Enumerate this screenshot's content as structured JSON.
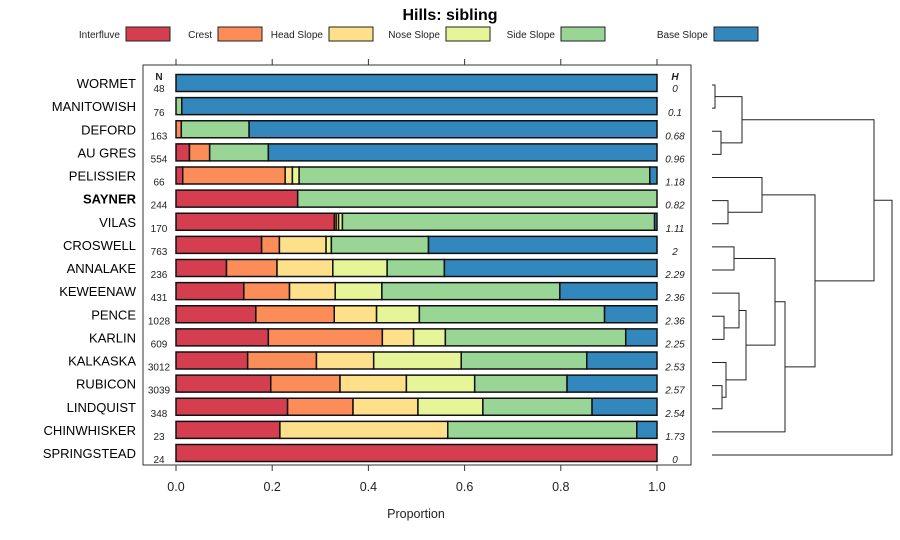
{
  "chart_data": {
    "type": "bar",
    "orientation": "horizontal-stacked",
    "title": "Hills: sibling",
    "xlabel": "Proportion",
    "xlim": [
      0,
      1
    ],
    "xticks": [
      "0.0",
      "0.2",
      "0.4",
      "0.6",
      "0.8",
      "1.0"
    ],
    "n_header": "N",
    "h_header": "H",
    "legend_position": "top",
    "series": [
      {
        "name": "Interfluve",
        "color": "#d53e4f"
      },
      {
        "name": "Crest",
        "color": "#fc8d59"
      },
      {
        "name": "Head Slope",
        "color": "#fee08b"
      },
      {
        "name": "Nose Slope",
        "color": "#e6f598"
      },
      {
        "name": "Side Slope",
        "color": "#99d594"
      },
      {
        "name": "Base Slope",
        "color": "#3288bd"
      }
    ],
    "rows": [
      {
        "label": "WORMET",
        "bold": false,
        "n": "48",
        "h": "0",
        "values": [
          0,
          0,
          0,
          0,
          0,
          1.0
        ]
      },
      {
        "label": "MANITOWISH",
        "bold": false,
        "n": "76",
        "h": "0.1",
        "values": [
          0,
          0,
          0,
          0,
          0.012,
          0.988
        ]
      },
      {
        "label": "DEFORD",
        "bold": false,
        "n": "163",
        "h": "0.68",
        "values": [
          0,
          0.011,
          0,
          0,
          0.141,
          0.848
        ]
      },
      {
        "label": "AU GRES",
        "bold": false,
        "n": "554",
        "h": "0.96",
        "values": [
          0.028,
          0.042,
          0,
          0,
          0.122,
          0.808
        ]
      },
      {
        "label": "PELISSIER",
        "bold": false,
        "n": "66",
        "h": "1.18",
        "values": [
          0.014,
          0.213,
          0.015,
          0.014,
          0.729,
          0.015
        ]
      },
      {
        "label": "SAYNER",
        "bold": true,
        "n": "244",
        "h": "0.82",
        "values": [
          0.253,
          0,
          0,
          0,
          0.747,
          0
        ]
      },
      {
        "label": "VILAS",
        "bold": false,
        "n": "170",
        "h": "1.11",
        "values": [
          0.329,
          0.004,
          0.005,
          0.008,
          0.649,
          0.005
        ]
      },
      {
        "label": "CROSWELL",
        "bold": false,
        "n": "763",
        "h": "2",
        "values": [
          0.178,
          0.037,
          0.097,
          0.011,
          0.202,
          0.475
        ]
      },
      {
        "label": "ANNALAKE",
        "bold": false,
        "n": "236",
        "h": "2.29",
        "values": [
          0.105,
          0.105,
          0.116,
          0.113,
          0.119,
          0.442
        ]
      },
      {
        "label": "KEWEENAW",
        "bold": false,
        "n": "431",
        "h": "2.36",
        "values": [
          0.141,
          0.095,
          0.095,
          0.097,
          0.37,
          0.202
        ]
      },
      {
        "label": "PENCE",
        "bold": false,
        "n": "1028",
        "h": "2.36",
        "values": [
          0.166,
          0.163,
          0.088,
          0.089,
          0.385,
          0.109
        ]
      },
      {
        "label": "KARLIN",
        "bold": false,
        "n": "609",
        "h": "2.25",
        "values": [
          0.192,
          0.237,
          0.065,
          0.066,
          0.375,
          0.065
        ]
      },
      {
        "label": "KALKASKA",
        "bold": false,
        "n": "3012",
        "h": "2.53",
        "values": [
          0.149,
          0.143,
          0.119,
          0.182,
          0.261,
          0.146
        ]
      },
      {
        "label": "RUBICON",
        "bold": false,
        "n": "3039",
        "h": "2.57",
        "values": [
          0.197,
          0.144,
          0.138,
          0.142,
          0.192,
          0.187
        ]
      },
      {
        "label": "LINDQUIST",
        "bold": false,
        "n": "348",
        "h": "2.54",
        "values": [
          0.232,
          0.136,
          0.135,
          0.135,
          0.227,
          0.135
        ]
      },
      {
        "label": "CHINWHISKER",
        "bold": false,
        "n": "23",
        "h": "1.73",
        "values": [
          0.216,
          0,
          0.349,
          0,
          0.393,
          0.042
        ]
      },
      {
        "label": "SPRINGSTEAD",
        "bold": false,
        "n": "24",
        "h": "0",
        "values": [
          1.0,
          0,
          0,
          0,
          0,
          0
        ]
      }
    ]
  }
}
